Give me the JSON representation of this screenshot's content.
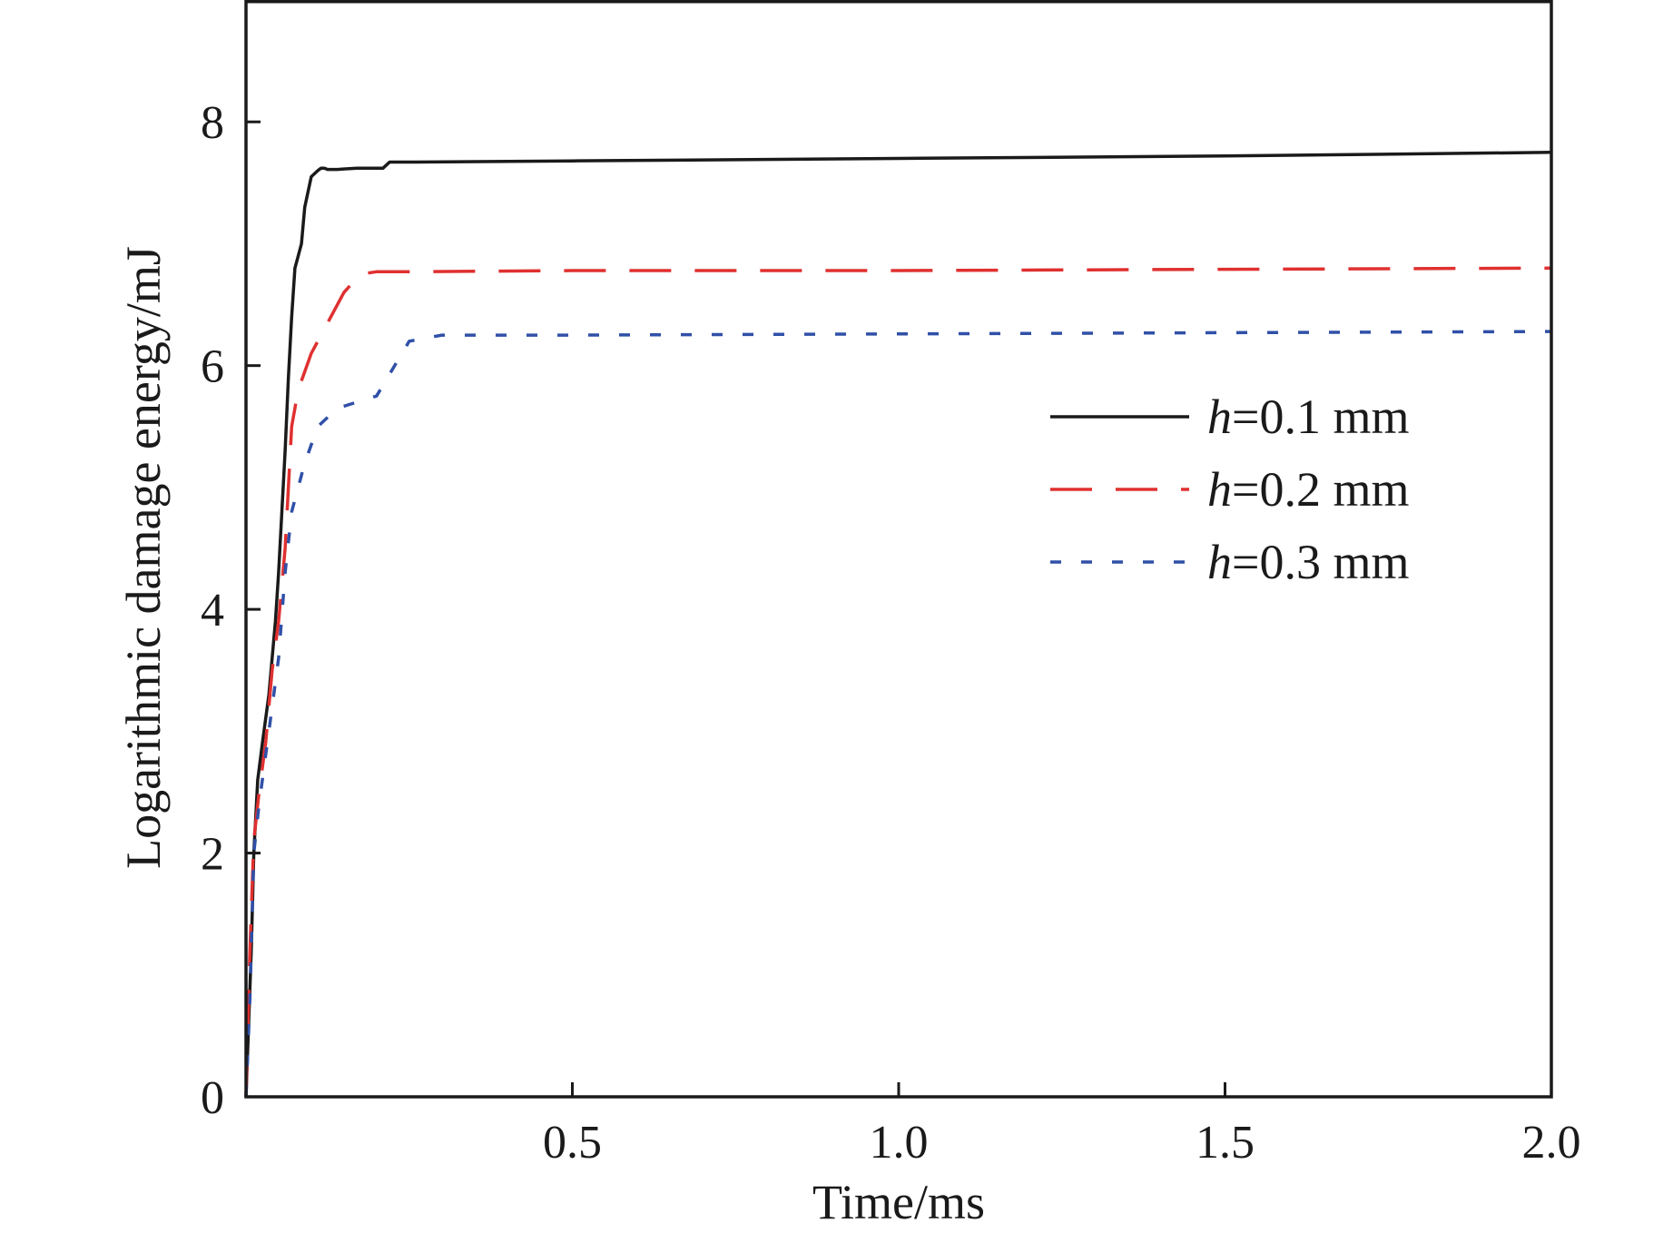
{
  "chart_data": {
    "type": "line",
    "title": "",
    "xlabel": "Time/ms",
    "ylabel": "Logarithmic damage energy/mJ",
    "xlim": [
      0,
      2.0
    ],
    "ylim": [
      0,
      9
    ],
    "xticks": [
      0.5,
      1.0,
      1.5,
      2.0
    ],
    "xtick_labels": [
      "0.5",
      "1.0",
      "1.5",
      "2.0"
    ],
    "yticks": [
      0,
      2,
      4,
      6,
      8
    ],
    "ytick_labels": [
      "0",
      "2",
      "4",
      "6",
      "8"
    ],
    "grid": false,
    "legend_position": "middle-right",
    "series": [
      {
        "name_prefix": "h",
        "name_suffix": "=0.1 mm",
        "color": "#1a1a1a",
        "dash": "solid",
        "x": [
          0,
          0.004,
          0.008,
          0.012,
          0.018,
          0.025,
          0.035,
          0.045,
          0.05,
          0.055,
          0.06,
          0.065,
          0.07,
          0.075,
          0.08,
          0.085,
          0.09,
          0.1,
          0.11,
          0.115,
          0.12,
          0.125,
          0.14,
          0.17,
          0.21,
          0.22,
          0.26,
          0.5,
          1.0,
          1.5,
          2.0
        ],
        "y": [
          0,
          0.6,
          1.2,
          2.0,
          2.6,
          2.9,
          3.3,
          3.9,
          4.3,
          4.8,
          5.3,
          5.9,
          6.4,
          6.8,
          6.9,
          7.0,
          7.3,
          7.55,
          7.6,
          7.62,
          7.62,
          7.61,
          7.61,
          7.62,
          7.62,
          7.67,
          7.67,
          7.68,
          7.7,
          7.72,
          7.75
        ]
      },
      {
        "name_prefix": "h",
        "name_suffix": "=0.2 mm",
        "color": "#e03030",
        "dash": "long",
        "x": [
          0,
          0.006,
          0.012,
          0.02,
          0.03,
          0.04,
          0.05,
          0.06,
          0.07,
          0.08,
          0.1,
          0.12,
          0.15,
          0.175,
          0.2,
          0.25,
          0.5,
          1.0,
          1.5,
          2.0
        ],
        "y": [
          0,
          1.2,
          2.1,
          2.5,
          2.9,
          3.5,
          3.9,
          4.5,
          5.5,
          5.8,
          6.1,
          6.3,
          6.6,
          6.75,
          6.77,
          6.77,
          6.78,
          6.78,
          6.79,
          6.8
        ]
      },
      {
        "name_prefix": "h",
        "name_suffix": "=0.3 mm",
        "color": "#3050a8",
        "dash": "short",
        "x": [
          0,
          0.006,
          0.012,
          0.02,
          0.03,
          0.04,
          0.05,
          0.06,
          0.07,
          0.09,
          0.11,
          0.14,
          0.2,
          0.25,
          0.3,
          0.5,
          1.0,
          1.5,
          2.0
        ],
        "y": [
          0,
          0.8,
          2.0,
          2.4,
          2.8,
          3.2,
          3.6,
          4.3,
          4.8,
          5.2,
          5.5,
          5.65,
          5.75,
          6.2,
          6.25,
          6.25,
          6.26,
          6.27,
          6.28
        ]
      }
    ]
  }
}
